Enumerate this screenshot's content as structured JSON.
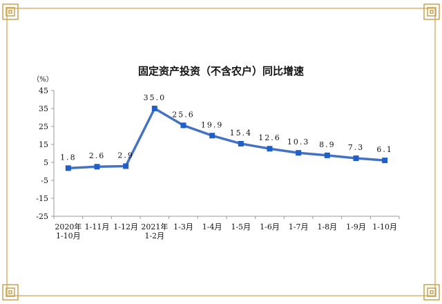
{
  "chart_data": {
    "type": "line",
    "title": "固定资产投资（不含农户）同比增速",
    "ylabel": "（%）",
    "ylim": [
      -25,
      45
    ],
    "yticks": [
      -25,
      -15,
      -5,
      5,
      15,
      25,
      35,
      45
    ],
    "categories": [
      [
        "2020年",
        "1-10月"
      ],
      [
        "1-11月"
      ],
      [
        "1-12月"
      ],
      [
        "2021年",
        "1-2月"
      ],
      [
        "1-3月"
      ],
      [
        "1-4月"
      ],
      [
        "1-5月"
      ],
      [
        "1-6月"
      ],
      [
        "1-7月"
      ],
      [
        "1-8月"
      ],
      [
        "1-9月"
      ],
      [
        "1-10月"
      ]
    ],
    "series": [
      {
        "values": [
          1.8,
          2.6,
          2.9,
          35.0,
          25.6,
          19.9,
          15.4,
          12.6,
          10.3,
          8.9,
          7.3,
          6.1
        ]
      }
    ],
    "data_labels": [
      "1.8",
      "2.6",
      "2.9",
      "35.0",
      "25.6",
      "19.9",
      "15.4",
      "12.6",
      "10.3",
      "8.9",
      "7.3",
      "6.1"
    ],
    "grid": false,
    "colors": {
      "line": "#4472C4",
      "marker": "#1F5FC7",
      "frame": "#D9B56B",
      "axis": "#999999"
    }
  }
}
